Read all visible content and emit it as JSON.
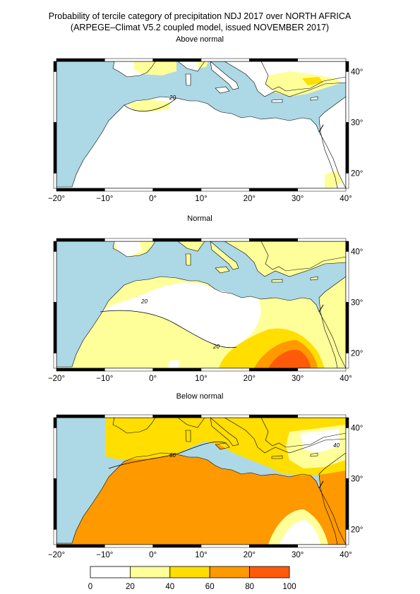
{
  "title_line1": "Probability of tercile category of precipitation NDJ 2017 over NORTH AFRICA",
  "title_line2": "(ARPEGE–Climat V5.2 coupled model, issued NOVEMBER 2017)",
  "panels": [
    {
      "title": "Above normal",
      "contour_labels": [
        "20"
      ]
    },
    {
      "title": "Normal",
      "contour_labels": [
        "20",
        "20"
      ]
    },
    {
      "title": "Below normal",
      "contour_labels": [
        "60",
        "40"
      ]
    }
  ],
  "lon_ticks": [
    "−20°",
    "−10°",
    "0°",
    "10°",
    "20°",
    "30°",
    "40°"
  ],
  "lat_ticks": [
    "40°",
    "30°",
    "20°"
  ],
  "legend": {
    "bins": [
      0,
      20,
      40,
      60,
      80,
      100
    ],
    "labels": [
      "0",
      "20",
      "40",
      "60",
      "80",
      "100"
    ],
    "colors": [
      "#ffffff",
      "#ffff99",
      "#ffde00",
      "#ff9900",
      "#ff5a0a"
    ]
  },
  "colors": {
    "sea": "#add8e6",
    "land_low": "#ffffff",
    "c20": "#ffff99",
    "c40": "#ffde00",
    "c60": "#ff9900",
    "c80": "#ff5a0a"
  }
}
